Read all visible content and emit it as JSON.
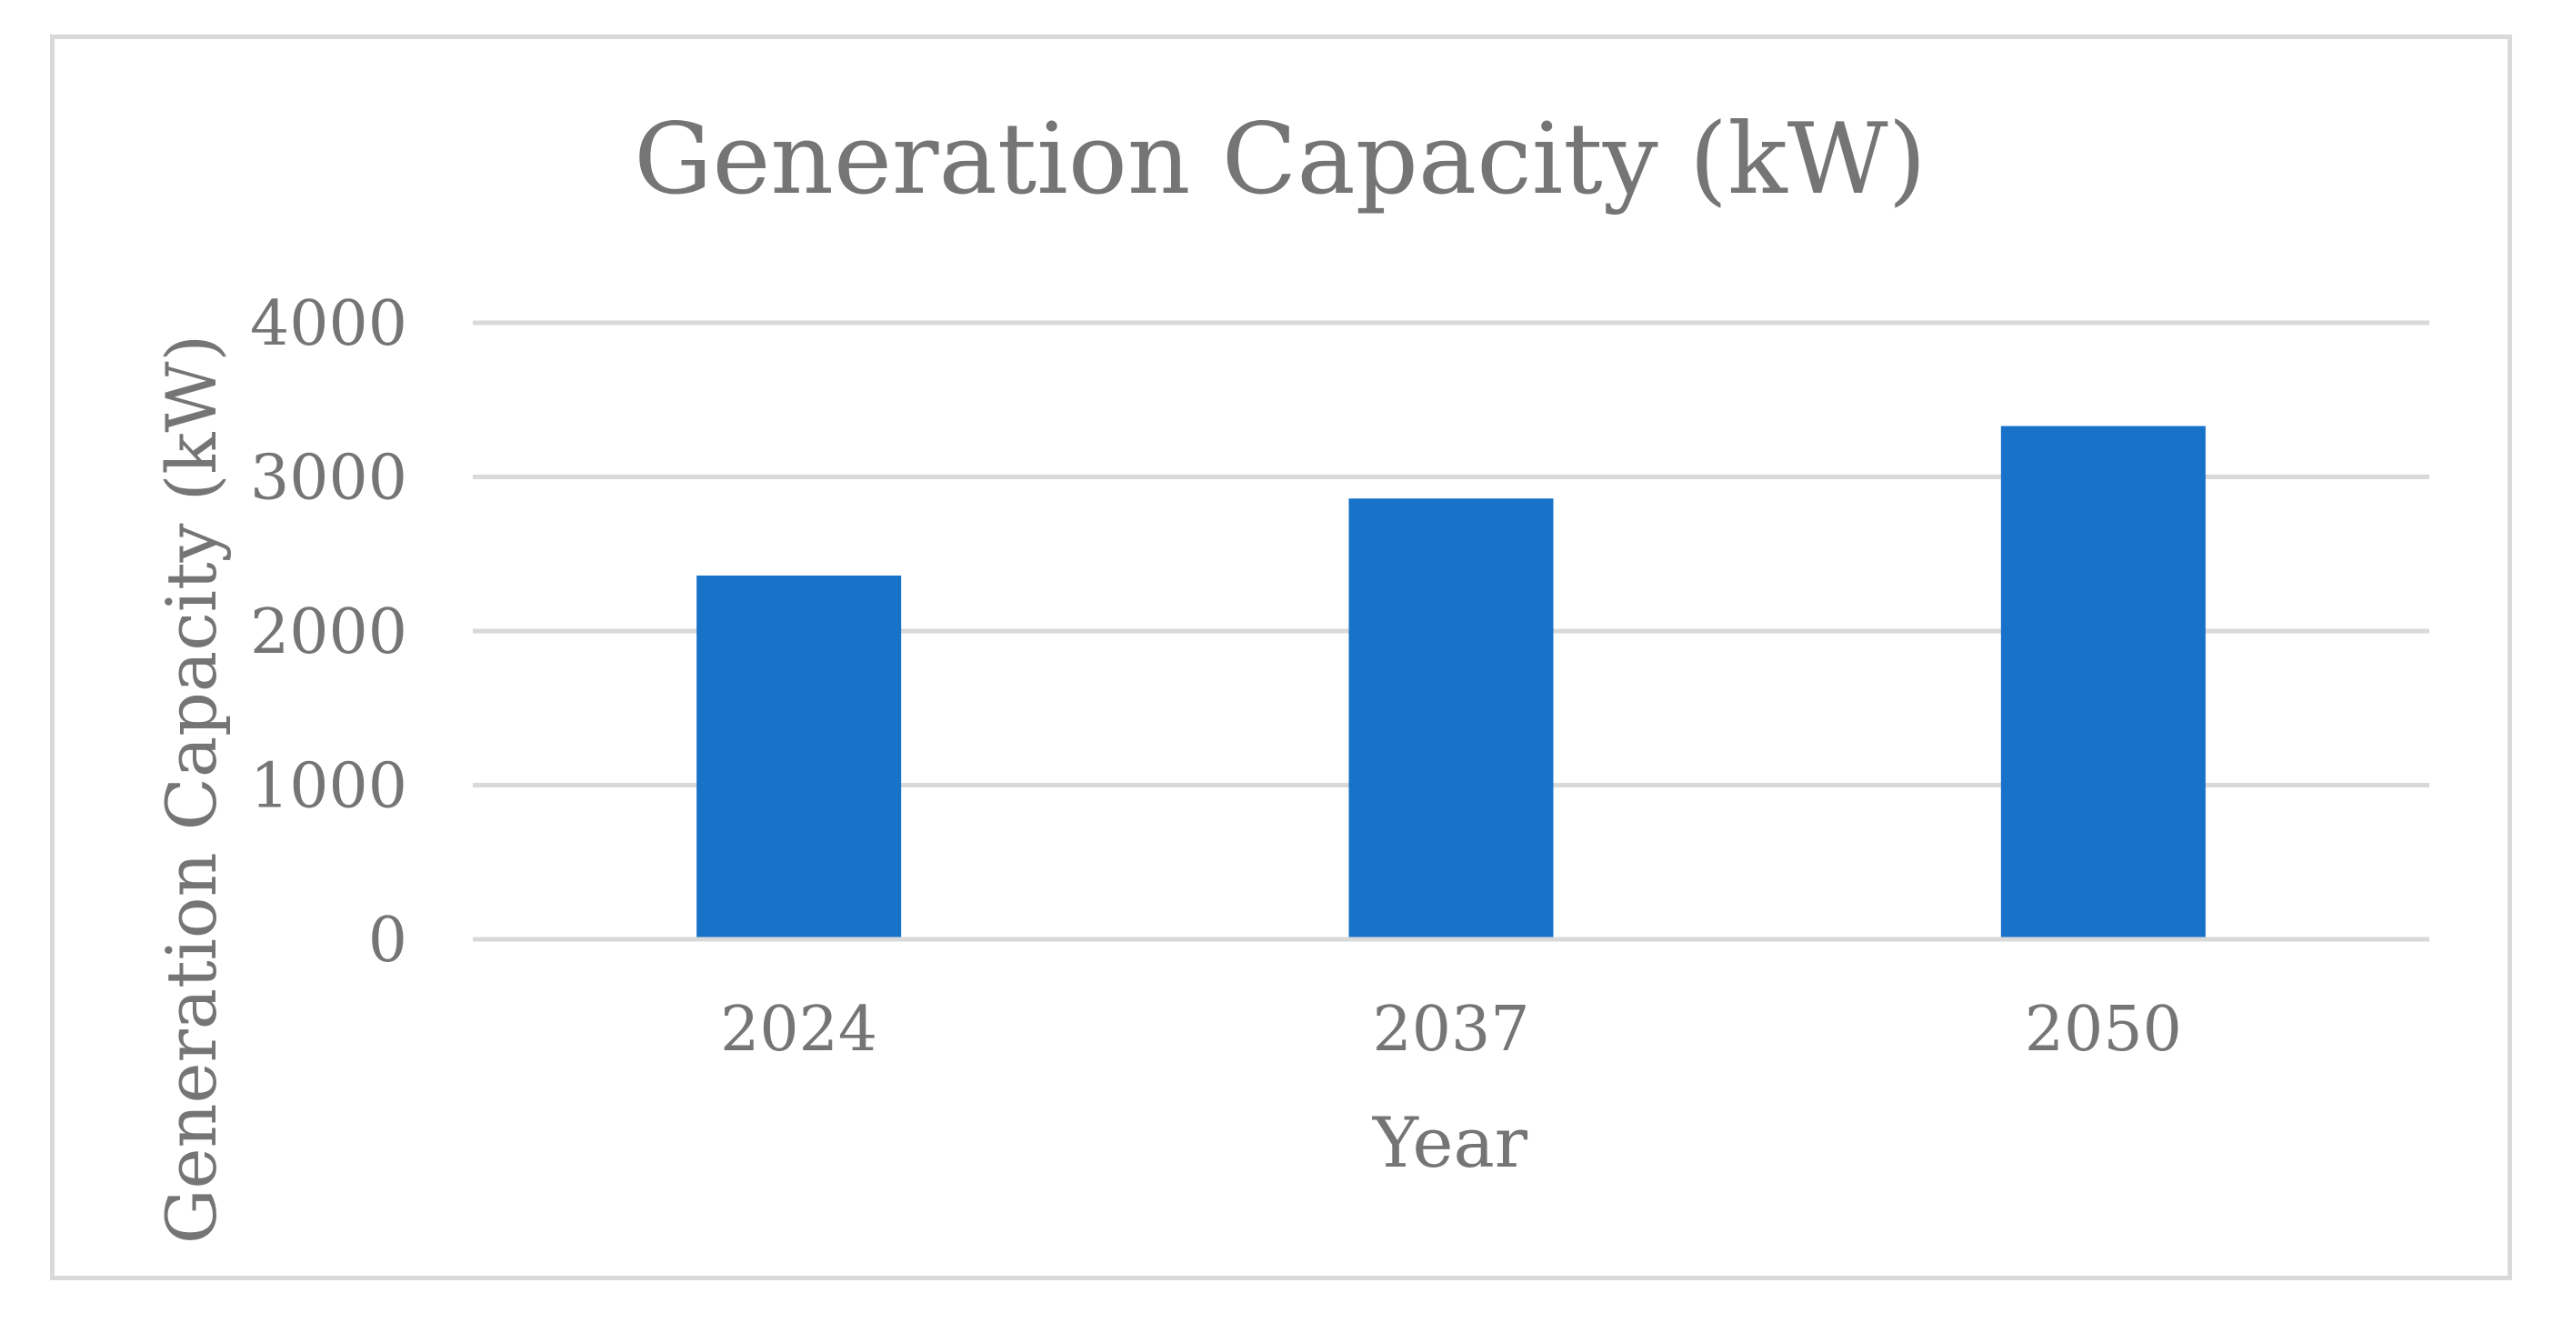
{
  "chart_data": {
    "type": "bar",
    "title": "Generation Capacity (kW)",
    "xlabel": "Year",
    "ylabel": "Generation Capacity (kW)",
    "categories": [
      "2024",
      "2037",
      "2050"
    ],
    "series": [
      {
        "name": "Generation Capacity (kW)",
        "values": [
          2360,
          2860,
          3330
        ]
      }
    ],
    "ylim": [
      0,
      4000
    ],
    "yticks": [
      "0",
      "1000",
      "2000",
      "3000",
      "4000"
    ],
    "grid": true,
    "legend": "none",
    "colors": {
      "bar": "#1772c8",
      "grid": "#d9d9d9",
      "text": "#757575",
      "border": "#d9d9d9"
    }
  }
}
